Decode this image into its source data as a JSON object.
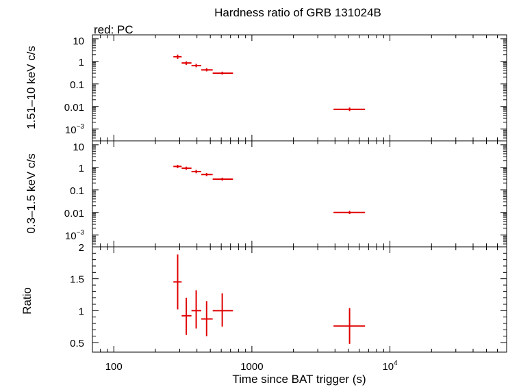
{
  "chart_data": {
    "type": "scatter",
    "title": "Hardness ratio of GRB 131024B",
    "subtitle": "red: PC",
    "xlabel": "Time since BAT trigger (s)",
    "xscale": "log",
    "xlim": [
      70,
      70000
    ],
    "x_ticks": [
      {
        "value": 100,
        "label": "100"
      },
      {
        "value": 1000,
        "label": "1000"
      },
      {
        "value": 10000,
        "label": "10",
        "sup": "4"
      }
    ],
    "series_color": "#e00000",
    "panels": [
      {
        "id": "hard",
        "ylabel": "1.51–10 keV c/s",
        "yscale": "log",
        "ylim": [
          0.0003,
          15
        ],
        "y_ticks": [
          {
            "value": 10,
            "label": "10"
          },
          {
            "value": 1,
            "label": "1"
          },
          {
            "value": 0.1,
            "label": "0.1"
          },
          {
            "value": 0.01,
            "label": "0.01"
          },
          {
            "value": 0.001,
            "label": "10",
            "sup": "−3"
          }
        ],
        "points": [
          {
            "x": 290,
            "xlo": 270,
            "xhi": 310,
            "y": 1.6,
            "ylo": 1.3,
            "yhi": 2.0
          },
          {
            "x": 335,
            "xlo": 310,
            "xhi": 365,
            "y": 0.85,
            "ylo": 0.7,
            "yhi": 1.0
          },
          {
            "x": 395,
            "xlo": 365,
            "xhi": 430,
            "y": 0.65,
            "ylo": 0.55,
            "yhi": 0.78
          },
          {
            "x": 470,
            "xlo": 430,
            "xhi": 520,
            "y": 0.42,
            "ylo": 0.36,
            "yhi": 0.5
          },
          {
            "x": 610,
            "xlo": 520,
            "xhi": 730,
            "y": 0.3,
            "ylo": 0.26,
            "yhi": 0.35
          },
          {
            "x": 5100,
            "xlo": 3900,
            "xhi": 6600,
            "y": 0.0075,
            "ylo": 0.0063,
            "yhi": 0.009
          }
        ]
      },
      {
        "id": "soft",
        "ylabel": "0.3–1.5 keV c/s",
        "yscale": "log",
        "ylim": [
          0.0003,
          15
        ],
        "y_ticks": [
          {
            "value": 10,
            "label": "10"
          },
          {
            "value": 1,
            "label": "1"
          },
          {
            "value": 0.1,
            "label": "0.1"
          },
          {
            "value": 0.01,
            "label": "0.01"
          },
          {
            "value": 0.001,
            "label": "10",
            "sup": "−3"
          }
        ],
        "points": [
          {
            "x": 290,
            "xlo": 270,
            "xhi": 310,
            "y": 1.1,
            "ylo": 0.92,
            "yhi": 1.3
          },
          {
            "x": 335,
            "xlo": 310,
            "xhi": 365,
            "y": 0.92,
            "ylo": 0.78,
            "yhi": 1.08
          },
          {
            "x": 395,
            "xlo": 365,
            "xhi": 430,
            "y": 0.65,
            "ylo": 0.55,
            "yhi": 0.77
          },
          {
            "x": 470,
            "xlo": 430,
            "xhi": 520,
            "y": 0.48,
            "ylo": 0.41,
            "yhi": 0.56
          },
          {
            "x": 610,
            "xlo": 520,
            "xhi": 730,
            "y": 0.3,
            "ylo": 0.26,
            "yhi": 0.35
          },
          {
            "x": 5100,
            "xlo": 3900,
            "xhi": 6600,
            "y": 0.01,
            "ylo": 0.0085,
            "yhi": 0.0118
          }
        ]
      },
      {
        "id": "ratio",
        "ylabel": "Ratio",
        "yscale": "linear",
        "ylim": [
          0.35,
          2.0
        ],
        "y_ticks": [
          {
            "value": 2,
            "label": "2"
          },
          {
            "value": 1.5,
            "label": "1.5"
          },
          {
            "value": 1,
            "label": "1"
          },
          {
            "value": 0.5,
            "label": "0.5"
          }
        ],
        "points": [
          {
            "x": 290,
            "xlo": 270,
            "xhi": 310,
            "y": 1.45,
            "ylo": 1.02,
            "yhi": 1.88
          },
          {
            "x": 335,
            "xlo": 310,
            "xhi": 365,
            "y": 0.92,
            "ylo": 0.62,
            "yhi": 1.2
          },
          {
            "x": 395,
            "xlo": 365,
            "xhi": 430,
            "y": 1.0,
            "ylo": 0.72,
            "yhi": 1.32
          },
          {
            "x": 470,
            "xlo": 430,
            "xhi": 520,
            "y": 0.87,
            "ylo": 0.6,
            "yhi": 1.15
          },
          {
            "x": 610,
            "xlo": 520,
            "xhi": 730,
            "y": 1.0,
            "ylo": 0.75,
            "yhi": 1.27
          },
          {
            "x": 5100,
            "xlo": 3900,
            "xhi": 6600,
            "y": 0.76,
            "ylo": 0.48,
            "yhi": 1.04
          }
        ]
      }
    ]
  }
}
